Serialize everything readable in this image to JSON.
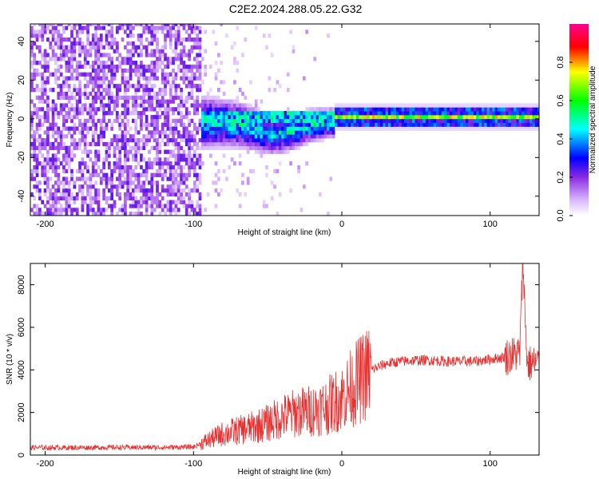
{
  "title": "C2E2.2024.288.05.22.G32",
  "chart_data": [
    {
      "type": "heatmap",
      "xlabel": "Height of straight line (km)",
      "ylabel": "Frequency (Hz)",
      "xlim": [
        -210,
        133
      ],
      "ylim": [
        -50,
        49
      ],
      "x_ticks": [
        -200,
        -100,
        0,
        100
      ],
      "y_ticks": [
        -40,
        -20,
        0,
        20,
        40
      ],
      "colorbar": {
        "label": "Normalized spectral amplitude",
        "range": [
          0,
          1
        ],
        "ticks": [
          0.0,
          0.2,
          0.4,
          0.6,
          0.8
        ],
        "colormap": [
          "#ffffff",
          "#8a2be2",
          "#0000ff",
          "#00ffff",
          "#00ff00",
          "#ffff00",
          "#ff0000",
          "#ff00a0"
        ]
      },
      "regions": [
        {
          "x_range": [
            -210,
            -95
          ],
          "freq_spread": [
            -50,
            49
          ],
          "amplitude": 0.12
        },
        {
          "x_range": [
            -95,
            -5
          ],
          "freq_spread": [
            -30,
            10
          ],
          "amplitude": 0.35
        },
        {
          "x_range": [
            -5,
            133
          ],
          "freq_spread": [
            -3,
            3
          ],
          "amplitude": 0.6
        }
      ]
    },
    {
      "type": "line",
      "xlabel": "Height of straight line (km)",
      "ylabel": "SNR (10 * v/v)",
      "xlim": [
        -210,
        133
      ],
      "ylim": [
        0,
        9000
      ],
      "x_ticks": [
        -200,
        -100,
        0,
        100
      ],
      "y_ticks": [
        0,
        2000,
        4000,
        6000,
        8000
      ],
      "color": "#e83030",
      "series": [
        {
          "x": [
            -210,
            -180,
            -150,
            -120,
            -100,
            -90,
            -80,
            -70,
            -60,
            -50,
            -40,
            -30,
            -20,
            -10,
            0,
            10,
            20,
            30,
            40,
            50,
            60,
            70,
            80,
            90,
            100,
            110,
            115,
            120,
            122,
            125,
            130,
            133
          ],
          "y": [
            350,
            350,
            360,
            360,
            380,
            700,
            1000,
            1150,
            1300,
            1500,
            1800,
            2000,
            2100,
            2300,
            2700,
            3400,
            4000,
            4300,
            4400,
            4450,
            4450,
            4400,
            4400,
            4400,
            4500,
            4600,
            4700,
            4800,
            9000,
            4300,
            4300,
            4300
          ]
        }
      ]
    }
  ]
}
